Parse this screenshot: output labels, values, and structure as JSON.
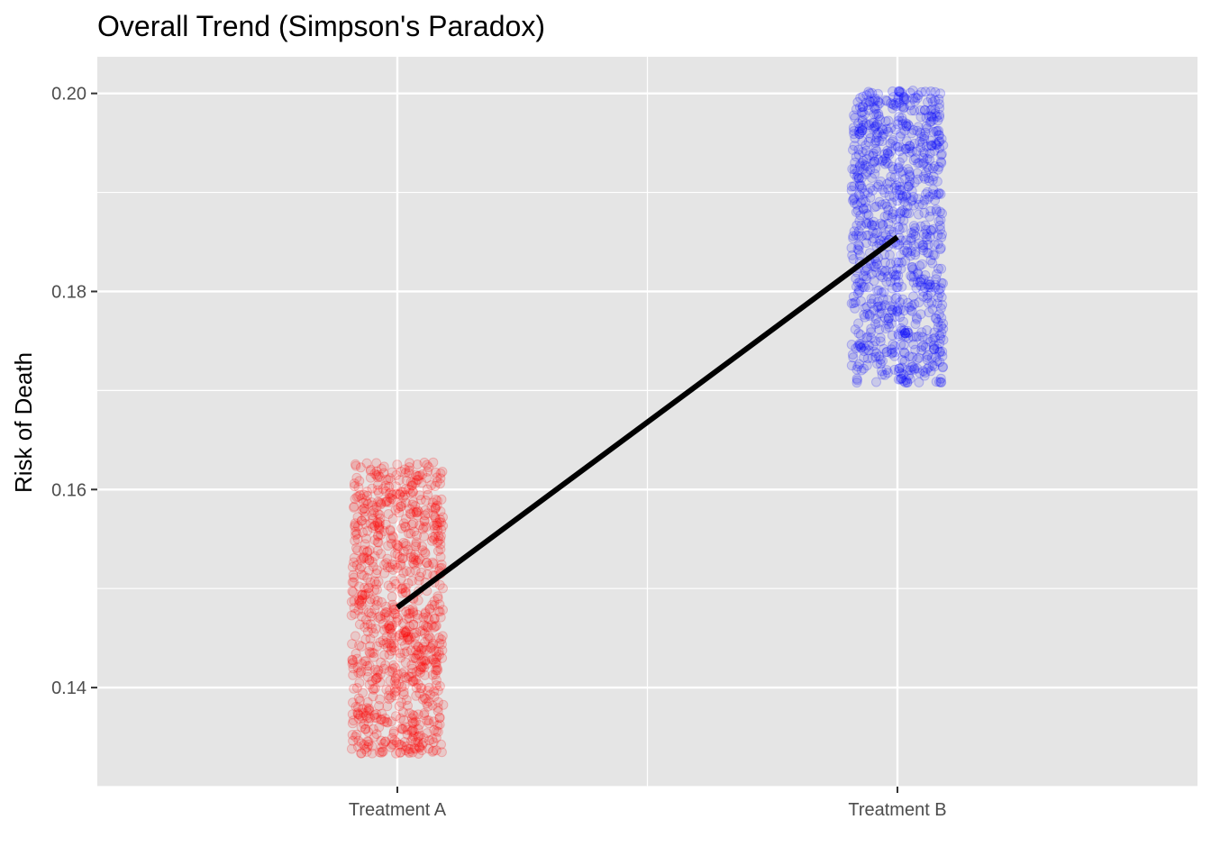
{
  "chart_data": {
    "type": "scatter",
    "title": "Overall Trend (Simpson's Paradox)",
    "xlabel": "",
    "ylabel": "Risk of Death",
    "categories": [
      "Treatment A",
      "Treatment B"
    ],
    "ylim": [
      0.13,
      0.2037
    ],
    "y_ticks": [
      0.14,
      0.16,
      0.18,
      0.2
    ],
    "y_tick_labels": [
      "0.14",
      "0.16",
      "0.18",
      "0.20"
    ],
    "grid": true,
    "legend": "none",
    "series": [
      {
        "category": "Treatment A",
        "color": "#ff0000",
        "y_min": 0.1333,
        "y_max": 0.1628,
        "mean": 0.1481,
        "n_points": 900
      },
      {
        "category": "Treatment B",
        "color": "#0000ff",
        "y_min": 0.1707,
        "y_max": 0.2003,
        "mean": 0.1855,
        "n_points": 900
      }
    ],
    "trend_line": {
      "color": "#000000",
      "from": {
        "x": "Treatment A",
        "y": 0.1481
      },
      "to": {
        "x": "Treatment B",
        "y": 0.1855
      }
    },
    "colors": {
      "panel_background": "#e5e5e5",
      "grid_line": "#ffffff",
      "tick_text": "#4d4d4d"
    }
  }
}
